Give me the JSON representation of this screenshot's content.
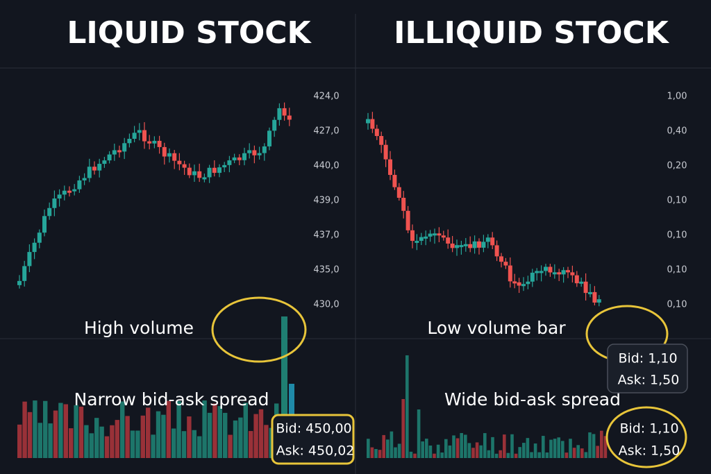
{
  "panels": [
    {
      "title": "LIQUID STOCK",
      "axis_labels": [
        "424,0",
        "427,0",
        "440,0",
        "439,0",
        "437,0",
        "435,0",
        "430,0"
      ],
      "volume_note": "High volume",
      "spread_note": "Narrow bid-ask spread",
      "quotes": [
        {
          "bid": "Bid: 450,00",
          "ask": "Ask: 450,02"
        }
      ]
    },
    {
      "title": "ILLIQUID STOCK",
      "axis_labels": [
        "1,00",
        "0,40",
        "0,20",
        "0,10",
        "0,10",
        "0,10",
        "0,10"
      ],
      "volume_note": "Low volume bar",
      "spread_note": "Wide bid-ask spread",
      "quotes": [
        {
          "bid": "Bid: 1,10",
          "ask": "Ask: 1,50"
        },
        {
          "bid": "Bid: 1,10",
          "ask": "Ask: 1,50"
        }
      ]
    }
  ]
}
